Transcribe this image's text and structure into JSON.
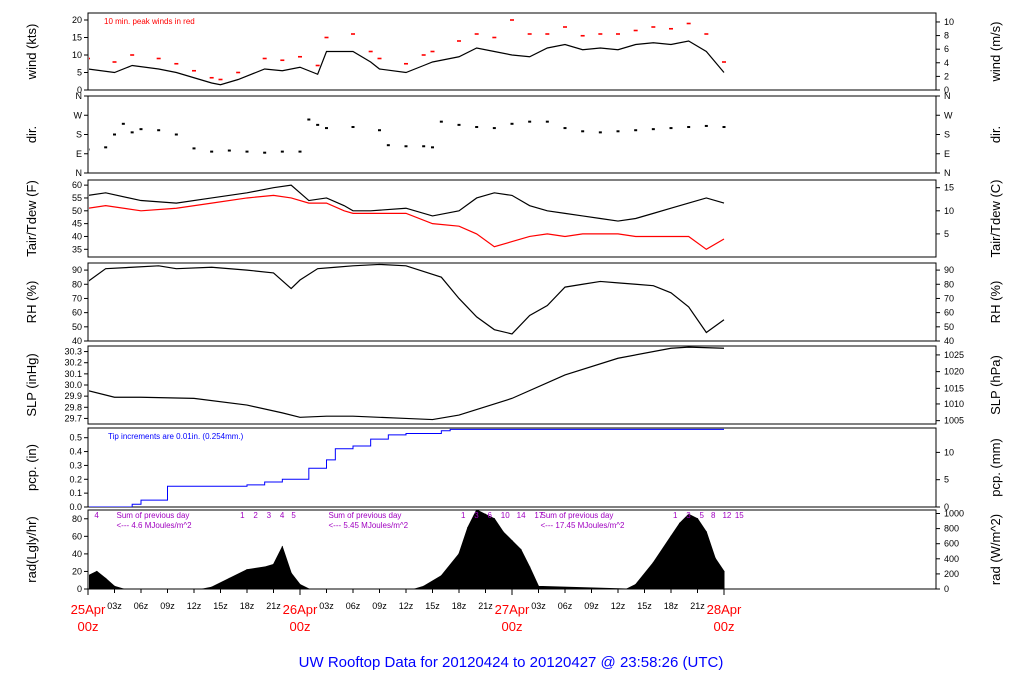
{
  "footer_title": "UW Rooftop Data for 20120424  to  20120427 @ 23:58:26  (UTC)",
  "colors": {
    "axis": "#000000",
    "series_black": "#000000",
    "series_red": "#ff0000",
    "series_blue": "#0000ff",
    "annotation_purple": "#a000c0",
    "date_red": "#ff0000",
    "footer_blue": "#0000ff"
  },
  "x_axis": {
    "start_hour": 0,
    "end_hour": 96,
    "tick_labels": [
      {
        "h": 3,
        "t": "03z"
      },
      {
        "h": 6,
        "t": "06z"
      },
      {
        "h": 9,
        "t": "09z"
      },
      {
        "h": 12,
        "t": "12z"
      },
      {
        "h": 15,
        "t": "15z"
      },
      {
        "h": 18,
        "t": "18z"
      },
      {
        "h": 21,
        "t": "21z"
      },
      {
        "h": 27,
        "t": "03z"
      },
      {
        "h": 30,
        "t": "06z"
      },
      {
        "h": 33,
        "t": "09z"
      },
      {
        "h": 36,
        "t": "12z"
      },
      {
        "h": 39,
        "t": "15z"
      },
      {
        "h": 42,
        "t": "18z"
      },
      {
        "h": 45,
        "t": "21z"
      },
      {
        "h": 51,
        "t": "03z"
      },
      {
        "h": 54,
        "t": "06z"
      },
      {
        "h": 57,
        "t": "09z"
      },
      {
        "h": 60,
        "t": "12z"
      },
      {
        "h": 63,
        "t": "15z"
      },
      {
        "h": 66,
        "t": "18z"
      },
      {
        "h": 69,
        "t": "21z"
      }
    ],
    "date_labels": [
      {
        "h": 0,
        "date": "25Apr",
        "hour": "00z"
      },
      {
        "h": 24,
        "date": "26Apr",
        "hour": "00z"
      },
      {
        "h": 48,
        "date": "27Apr",
        "hour": "00z"
      },
      {
        "h": 72,
        "date": "28Apr",
        "hour": "00z"
      }
    ]
  },
  "chart_data": [
    {
      "type": "line",
      "name": "wind",
      "ylabel_left": "wind (kts)",
      "ylabel_right": "wind (m/s)",
      "ylim": [
        0,
        22
      ],
      "left_ticks": [
        0,
        5,
        10,
        15,
        20
      ],
      "right_ticks": [
        {
          "v": 0,
          "t": "0"
        },
        {
          "v": 3.89,
          "t": "2"
        },
        {
          "v": 7.78,
          "t": "4"
        },
        {
          "v": 11.66,
          "t": "6"
        },
        {
          "v": 15.55,
          "t": "8"
        },
        {
          "v": 19.44,
          "t": "10"
        }
      ],
      "annotation": "10 min. peak winds in red",
      "series": [
        {
          "color": "black",
          "x": [
            0,
            3,
            5,
            8,
            10,
            12,
            14,
            15,
            17,
            20,
            22,
            24,
            26,
            27,
            30,
            32,
            33,
            36,
            38,
            39,
            42,
            44,
            46,
            48,
            50,
            52,
            54,
            56,
            58,
            60,
            62,
            64,
            66,
            68,
            70,
            72
          ],
          "y": [
            6,
            5,
            7,
            6,
            5,
            3.5,
            2,
            1.5,
            3,
            6,
            5.5,
            6.5,
            4.5,
            11,
            11,
            8,
            6,
            5,
            7,
            8,
            9.5,
            12,
            11,
            10,
            9.5,
            12,
            13,
            11.5,
            12,
            11.5,
            13,
            13.5,
            13,
            14,
            11,
            5
          ]
        },
        {
          "color": "red",
          "x": [
            0,
            3,
            5,
            8,
            10,
            12,
            14,
            15,
            17,
            20,
            22,
            24,
            26,
            27,
            30,
            32,
            33,
            36,
            38,
            39,
            42,
            44,
            46,
            48,
            50,
            52,
            54,
            56,
            58,
            60,
            62,
            64,
            66,
            68,
            70,
            72
          ],
          "y": [
            9,
            8,
            10,
            9,
            7.5,
            5.5,
            3.5,
            3,
            5,
            9,
            8.5,
            9.5,
            7,
            15,
            16,
            11,
            9,
            7.5,
            10,
            11,
            14,
            16,
            15,
            20,
            16,
            16,
            18,
            15.5,
            16,
            16,
            17,
            18,
            17.5,
            19,
            16,
            8
          ]
        }
      ]
    },
    {
      "type": "scatter",
      "name": "dir",
      "ylabel_left": "dir.",
      "ylabel_right": "dir.",
      "ylim": [
        0,
        360
      ],
      "left_ticks": [
        {
          "v": 0,
          "t": "N"
        },
        {
          "v": 90,
          "t": "E"
        },
        {
          "v": 180,
          "t": "S"
        },
        {
          "v": 270,
          "t": "W"
        },
        {
          "v": 360,
          "t": "N"
        }
      ],
      "right_ticks": [
        {
          "v": 0,
          "t": "N"
        },
        {
          "v": 90,
          "t": "E"
        },
        {
          "v": 180,
          "t": "S"
        },
        {
          "v": 270,
          "t": "W"
        },
        {
          "v": 360,
          "t": "N"
        }
      ],
      "series": [
        {
          "color": "black",
          "x": [
            0,
            2,
            3,
            4,
            5,
            6,
            8,
            10,
            12,
            14,
            16,
            18,
            20,
            22,
            24,
            25,
            26,
            27,
            30,
            33,
            34,
            36,
            38,
            39,
            40,
            42,
            44,
            46,
            48,
            50,
            52,
            54,
            56,
            58,
            60,
            62,
            64,
            66,
            68,
            70,
            72
          ],
          "y": [
            110,
            120,
            180,
            230,
            190,
            205,
            200,
            180,
            115,
            100,
            105,
            100,
            95,
            100,
            100,
            250,
            225,
            210,
            215,
            200,
            130,
            125,
            125,
            120,
            240,
            225,
            215,
            210,
            230,
            240,
            240,
            210,
            195,
            190,
            195,
            200,
            205,
            210,
            215,
            220,
            215
          ]
        }
      ]
    },
    {
      "type": "line",
      "name": "temperature",
      "ylabel_left": "Tair/Tdew (F)",
      "ylabel_right": "Tair/Tdew (C)",
      "ylim": [
        32,
        62
      ],
      "left_ticks": [
        35,
        40,
        45,
        50,
        55,
        60
      ],
      "right_ticks": [
        {
          "v": 41,
          "t": "5"
        },
        {
          "v": 50,
          "t": "10"
        },
        {
          "v": 59,
          "t": "15"
        }
      ],
      "series": [
        {
          "color": "black",
          "x": [
            0,
            2,
            6,
            10,
            14,
            18,
            21,
            23,
            25,
            27,
            29,
            30,
            32,
            36,
            39,
            42,
            44,
            46,
            48,
            50,
            52,
            54,
            56,
            58,
            60,
            62,
            64,
            66,
            68,
            70,
            72
          ],
          "y": [
            56,
            57,
            54,
            53,
            55,
            57,
            59,
            60,
            54,
            55,
            52,
            50,
            50,
            51,
            48,
            50,
            55,
            57,
            56,
            52,
            50,
            49,
            48,
            47,
            46,
            47,
            49,
            51,
            53,
            55,
            53
          ]
        },
        {
          "color": "red",
          "x": [
            0,
            2,
            6,
            10,
            14,
            18,
            21,
            23,
            25,
            27,
            29,
            30,
            32,
            36,
            39,
            42,
            44,
            46,
            48,
            50,
            52,
            54,
            56,
            58,
            60,
            62,
            64,
            66,
            68,
            70,
            72
          ],
          "y": [
            51,
            52,
            50,
            51,
            53,
            55,
            56,
            55,
            53,
            53,
            50,
            49,
            49,
            49,
            45,
            44,
            41,
            36,
            38,
            40,
            41,
            40,
            41,
            41,
            41,
            40,
            40,
            40,
            40,
            35,
            39
          ]
        }
      ]
    },
    {
      "type": "line",
      "name": "rh",
      "ylabel_left": "RH (%)",
      "ylabel_right": "RH (%)",
      "ylim": [
        40,
        95
      ],
      "left_ticks": [
        40,
        50,
        60,
        70,
        80,
        90
      ],
      "right_ticks": [
        {
          "v": 40,
          "t": "40"
        },
        {
          "v": 50,
          "t": "50"
        },
        {
          "v": 60,
          "t": "60"
        },
        {
          "v": 70,
          "t": "70"
        },
        {
          "v": 80,
          "t": "80"
        },
        {
          "v": 90,
          "t": "90"
        }
      ],
      "series": [
        {
          "color": "black",
          "x": [
            0,
            2,
            5,
            8,
            10,
            14,
            18,
            21,
            23,
            24,
            26,
            28,
            30,
            33,
            36,
            40,
            42,
            44,
            46,
            48,
            50,
            52,
            54,
            56,
            58,
            60,
            62,
            64,
            66,
            68,
            70,
            72
          ],
          "y": [
            82,
            91,
            92,
            93,
            91,
            92,
            90,
            88,
            77,
            83,
            91,
            92,
            93,
            94,
            93,
            85,
            70,
            57,
            48,
            45,
            58,
            65,
            78,
            80,
            82,
            81,
            80,
            79,
            74,
            64,
            46,
            55
          ]
        }
      ]
    },
    {
      "type": "line",
      "name": "slp",
      "ylabel_left": "SLP (inHg)",
      "ylabel_right": "SLP (hPa)",
      "ylim": [
        29.65,
        30.35
      ],
      "left_ticks": [
        {
          "v": 29.7,
          "t": "29.7"
        },
        {
          "v": 29.8,
          "t": "29.8"
        },
        {
          "v": 29.9,
          "t": "29.9"
        },
        {
          "v": 30.0,
          "t": "30.0"
        },
        {
          "v": 30.1,
          "t": "30.1"
        },
        {
          "v": 30.2,
          "t": "30.2"
        },
        {
          "v": 30.3,
          "t": "30.3"
        }
      ],
      "right_ticks": [
        {
          "v": 29.68,
          "t": "1005"
        },
        {
          "v": 29.83,
          "t": "1010"
        },
        {
          "v": 29.97,
          "t": "1015"
        },
        {
          "v": 30.12,
          "t": "1020"
        },
        {
          "v": 30.27,
          "t": "1025"
        }
      ],
      "series": [
        {
          "color": "black",
          "x": [
            0,
            3,
            6,
            12,
            18,
            22,
            24,
            27,
            30,
            36,
            39,
            42,
            48,
            54,
            60,
            66,
            68,
            72
          ],
          "y": [
            29.95,
            29.89,
            29.89,
            29.88,
            29.82,
            29.75,
            29.71,
            29.72,
            29.72,
            29.7,
            29.69,
            29.73,
            29.88,
            30.09,
            30.24,
            30.33,
            30.34,
            30.33
          ]
        }
      ]
    },
    {
      "type": "line",
      "name": "pcp",
      "ylabel_left": "pcp. (in)",
      "ylabel_right": "pcp. (mm)",
      "ylim": [
        0,
        0.57
      ],
      "left_ticks": [
        {
          "v": 0,
          "t": "0.0"
        },
        {
          "v": 0.1,
          "t": "0.1"
        },
        {
          "v": 0.2,
          "t": "0.2"
        },
        {
          "v": 0.3,
          "t": "0.3"
        },
        {
          "v": 0.4,
          "t": "0.4"
        },
        {
          "v": 0.5,
          "t": "0.5"
        }
      ],
      "right_ticks": [
        {
          "v": 0,
          "t": "0"
        },
        {
          "v": 0.197,
          "t": "5"
        },
        {
          "v": 0.394,
          "t": "10"
        }
      ],
      "annotation": "Tip increments are 0.01in. (0.254mm.)",
      "series": [
        {
          "color": "blue",
          "x": [
            0,
            5,
            6,
            9,
            18,
            20,
            22,
            24,
            25,
            27,
            28,
            30,
            32,
            34,
            36,
            38,
            40,
            41,
            72
          ],
          "y": [
            0,
            0.02,
            0.05,
            0.15,
            0.16,
            0.18,
            0.2,
            0.2,
            0.28,
            0.34,
            0.42,
            0.44,
            0.49,
            0.52,
            0.53,
            0.53,
            0.55,
            0.56,
            0.56
          ]
        }
      ]
    },
    {
      "type": "area",
      "name": "rad",
      "ylabel_left": "rad(Lgly/hr)",
      "ylabel_right": "rad (W/m^2)",
      "ylim": [
        0,
        90
      ],
      "left_ticks": [
        {
          "v": 0,
          "t": "0"
        },
        {
          "v": 20,
          "t": "20"
        },
        {
          "v": 40,
          "t": "40"
        },
        {
          "v": 60,
          "t": "60"
        },
        {
          "v": 80,
          "t": "80"
        }
      ],
      "right_ticks": [
        {
          "v": 0,
          "t": "0"
        },
        {
          "v": 17.2,
          "t": "200"
        },
        {
          "v": 34.4,
          "t": "400"
        },
        {
          "v": 51.6,
          "t": "600"
        },
        {
          "v": 68.8,
          "t": "800"
        },
        {
          "v": 86.0,
          "t": "1000"
        }
      ],
      "annotations": [
        {
          "h": 0.5,
          "text": "4",
          "row": 0
        },
        {
          "h": 3,
          "text": "Sum of previous day",
          "row": 0
        },
        {
          "h": 3,
          "text": "<--- 4.6 MJoules/m^2",
          "row": 1
        },
        {
          "h": 17,
          "text": "1",
          "row": 0
        },
        {
          "h": 18.5,
          "text": "2",
          "row": 0
        },
        {
          "h": 20,
          "text": "3",
          "row": 0
        },
        {
          "h": 21.5,
          "text": "4",
          "row": 0
        },
        {
          "h": 22.8,
          "text": "5",
          "row": 0
        },
        {
          "h": 27,
          "text": "Sum of previous day",
          "row": 0
        },
        {
          "h": 27,
          "text": "<--- 5.45 MJoules/m^2",
          "row": 1
        },
        {
          "h": 42,
          "text": "1",
          "row": 0
        },
        {
          "h": 43.5,
          "text": "3",
          "row": 0
        },
        {
          "h": 45,
          "text": "6",
          "row": 0
        },
        {
          "h": 46.5,
          "text": "10",
          "row": 0
        },
        {
          "h": 48.3,
          "text": "14",
          "row": 0
        },
        {
          "h": 50.3,
          "text": "17",
          "row": 0
        },
        {
          "h": 51,
          "text": "Sum of previous day",
          "row": 0
        },
        {
          "h": 51,
          "text": "<--- 17.45 MJoules/m^2",
          "row": 1
        },
        {
          "h": 66,
          "text": "1",
          "row": 0
        },
        {
          "h": 67.5,
          "text": "3",
          "row": 0
        },
        {
          "h": 69,
          "text": "5",
          "row": 0
        },
        {
          "h": 70.3,
          "text": "8",
          "row": 0
        },
        {
          "h": 71.6,
          "text": "12",
          "row": 0
        },
        {
          "h": 73,
          "text": "15",
          "row": 0
        }
      ],
      "series": [
        {
          "color": "black",
          "x": [
            0,
            1,
            2,
            3,
            4,
            13,
            14,
            16,
            18,
            20,
            21,
            22,
            23,
            24,
            25,
            37,
            38,
            40,
            42,
            43,
            44,
            45,
            46,
            47,
            48,
            49,
            50,
            51,
            61,
            62,
            64,
            66,
            67,
            68,
            69,
            70,
            71,
            72
          ],
          "y": [
            15,
            20,
            12,
            3,
            0,
            0,
            2,
            12,
            22,
            25,
            28,
            48,
            18,
            5,
            0,
            0,
            3,
            15,
            40,
            70,
            90,
            85,
            80,
            65,
            55,
            45,
            25,
            3,
            0,
            5,
            30,
            60,
            75,
            85,
            80,
            65,
            35,
            20
          ]
        }
      ]
    }
  ]
}
